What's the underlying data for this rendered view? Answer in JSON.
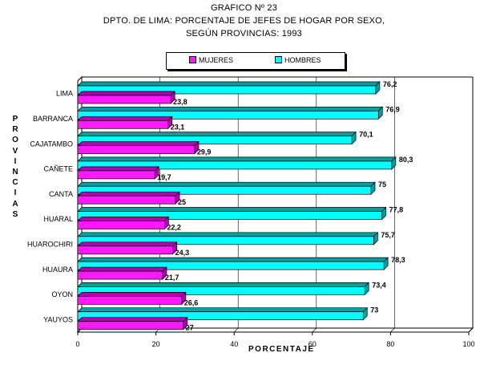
{
  "title": {
    "line1": "GRAFICO Nº 23",
    "line2": "DPTO. DE LIMA: PORCENTAJE DE JEFES DE HOGAR POR SEXO,",
    "line3": "SEGÚN PROVINCIAS: 1993"
  },
  "colors": {
    "mujeres": "#ff19ff",
    "mujeres_top": "#b000b0",
    "hombres": "#00ffff",
    "hombres_top": "#00a0a0"
  },
  "chart_data": {
    "type": "bar",
    "orientation": "horizontal",
    "title": "GRAFICO Nº 23 DPTO. DE LIMA: PORCENTAJE DE JEFES DE HOGAR POR SEXO, SEGÚN PROVINCIAS: 1993",
    "xlabel": "PORCENTAJE",
    "ylabel": "PROVINCIAS",
    "ylabel_letters": [
      "P",
      "R",
      "O",
      "V",
      "I",
      "N",
      "C",
      "I",
      "A",
      "S"
    ],
    "xlim": [
      0,
      100
    ],
    "xticks": [
      "0",
      "20",
      "40",
      "60",
      "80",
      "100"
    ],
    "xtick_values": [
      0,
      20,
      40,
      60,
      80,
      100
    ],
    "legend_position": "top-center",
    "categories": [
      "LIMA",
      "BARRANCA",
      "CAJATAMBO",
      "CAÑETE",
      "CANTA",
      "HUARAL",
      "HUAROCHIRI",
      "HUAURA",
      "OYON",
      "YAUYOS"
    ],
    "series": [
      {
        "name": "MUJERES",
        "values": [
          23.8,
          23.1,
          29.9,
          19.7,
          25,
          22.2,
          24.3,
          21.7,
          26.6,
          27
        ],
        "labels": [
          "23,8",
          "23,1",
          "29,9",
          "19,7",
          "25",
          "22,2",
          "24,3",
          "21,7",
          "26,6",
          "27"
        ]
      },
      {
        "name": "HOMBRES",
        "values": [
          76.2,
          76.9,
          70.1,
          80.3,
          75,
          77.8,
          75.7,
          78.3,
          73.4,
          73
        ],
        "labels": [
          "76,2",
          "76,9",
          "70,1",
          "80,3",
          "75",
          "77,8",
          "75,7",
          "78,3",
          "73,4",
          "73"
        ]
      }
    ]
  }
}
